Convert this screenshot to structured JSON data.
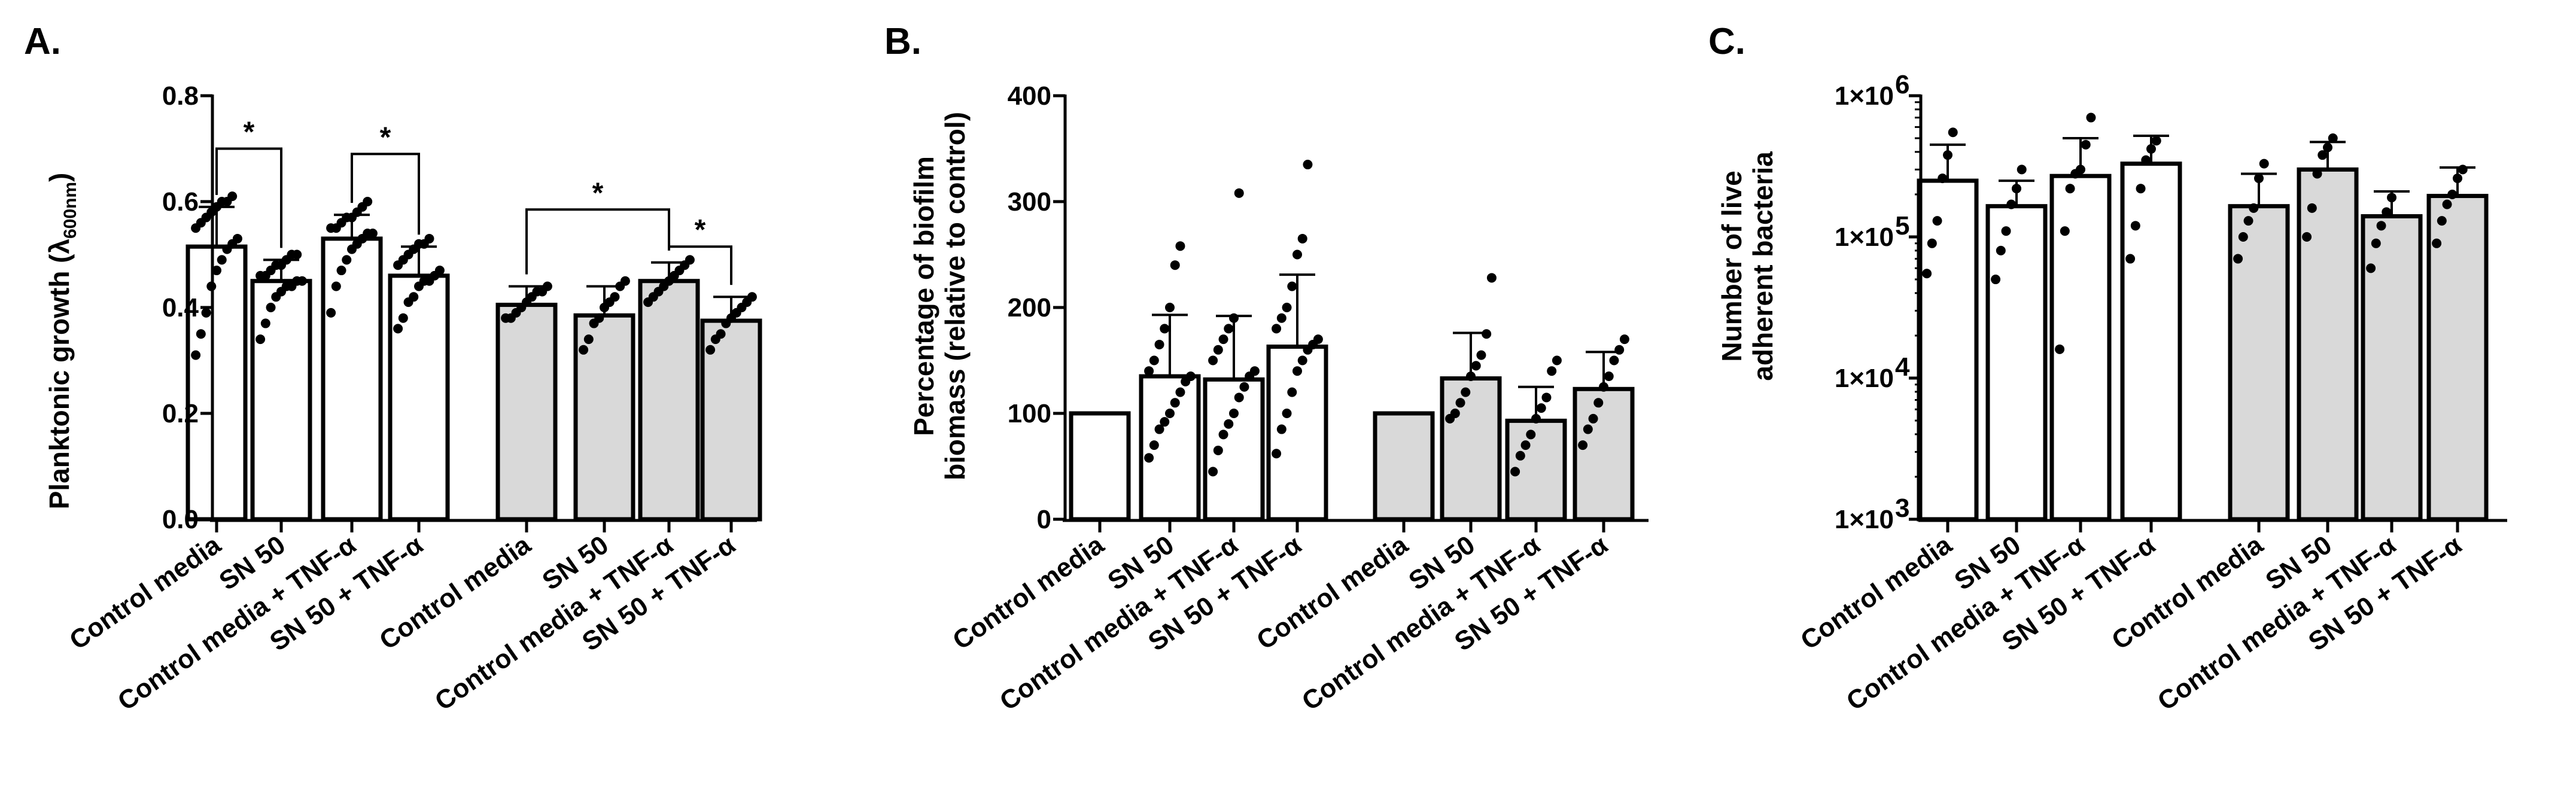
{
  "colors": {
    "white_bar": "#ffffff",
    "grey_bar": "#d9d9d9",
    "ink": "#000000"
  },
  "chart_data": [
    {
      "type": "bar",
      "panel": "A.",
      "ylabel": "Planktonic growth (λ",
      "ylabel_sub": "600nm",
      "ylabel_close": ")",
      "ylim": [
        0,
        0.8
      ],
      "yticks": [
        0,
        0.2,
        0.4,
        0.6,
        0.8
      ],
      "ytick_labels": [
        "0.0",
        "0.2",
        "0.4",
        "0.6",
        "0.8"
      ],
      "categories": [
        "Control media",
        "SN 50",
        "Control media + TNF-α",
        "SN 50 + TNF-α",
        "Control media",
        "SN 50",
        "Control media + TNF-α",
        "SN 50 + TNF-α"
      ],
      "fills": [
        "white",
        "white",
        "white",
        "white",
        "grey",
        "grey",
        "grey",
        "grey"
      ],
      "values": [
        0.515,
        0.45,
        0.53,
        0.46,
        0.405,
        0.385,
        0.45,
        0.375
      ],
      "errors": [
        0.075,
        0.04,
        0.045,
        0.055,
        0.035,
        0.055,
        0.035,
        0.045
      ],
      "points": [
        [
          0.31,
          0.35,
          0.39,
          0.44,
          0.47,
          0.49,
          0.51,
          0.52,
          0.53,
          0.55,
          0.56,
          0.57,
          0.58,
          0.59,
          0.6,
          0.6,
          0.61
        ],
        [
          0.34,
          0.37,
          0.4,
          0.42,
          0.43,
          0.44,
          0.44,
          0.45,
          0.45,
          0.46,
          0.46,
          0.47,
          0.48,
          0.48,
          0.49,
          0.5,
          0.5
        ],
        [
          0.39,
          0.44,
          0.47,
          0.49,
          0.51,
          0.52,
          0.53,
          0.54,
          0.54,
          0.55,
          0.55,
          0.56,
          0.57,
          0.57,
          0.58,
          0.59,
          0.6
        ],
        [
          0.36,
          0.38,
          0.41,
          0.42,
          0.44,
          0.45,
          0.45,
          0.46,
          0.47,
          0.48,
          0.49,
          0.5,
          0.51,
          0.52,
          0.52,
          0.53
        ],
        [
          0.38,
          0.38,
          0.39,
          0.4,
          0.41,
          0.42,
          0.43,
          0.43,
          0.44
        ],
        [
          0.32,
          0.34,
          0.37,
          0.38,
          0.4,
          0.41,
          0.42,
          0.44,
          0.45
        ],
        [
          0.41,
          0.42,
          0.43,
          0.44,
          0.45,
          0.46,
          0.47,
          0.48,
          0.49
        ],
        [
          0.32,
          0.34,
          0.35,
          0.37,
          0.38,
          0.39,
          0.4,
          0.41,
          0.42
        ]
      ],
      "significance": [
        {
          "from": 0,
          "to": 1,
          "y": 0.7,
          "label": "*"
        },
        {
          "from": 2,
          "to": 3,
          "y": 0.69,
          "label": "*"
        },
        {
          "from": 4,
          "to": 6,
          "y": 0.585,
          "label": "*"
        },
        {
          "from": 6,
          "to": 7,
          "y": 0.515,
          "label": "*"
        }
      ]
    },
    {
      "type": "bar",
      "panel": "B.",
      "ylabel": "Percentage of biofilm",
      "ylabel2": "biomass (relative to control)",
      "ylim": [
        0,
        400
      ],
      "yticks": [
        0,
        100,
        200,
        300,
        400
      ],
      "ytick_labels": [
        "0",
        "100",
        "200",
        "300",
        "400"
      ],
      "categories": [
        "Control media",
        "SN 50",
        "Control media + TNF-α",
        "SN 50 + TNF-α",
        "Control media",
        "SN 50",
        "Control media + TNF-α",
        "SN 50 + TNF-α"
      ],
      "fills": [
        "white",
        "white",
        "white",
        "white",
        "grey",
        "grey",
        "grey",
        "grey"
      ],
      "values": [
        100,
        135,
        132,
        163,
        100,
        133,
        93,
        123
      ],
      "errors": [
        0,
        58,
        60,
        68,
        0,
        43,
        32,
        35
      ],
      "points": [
        [],
        [
          58,
          70,
          85,
          92,
          100,
          110,
          120,
          130,
          135,
          140,
          150,
          165,
          180,
          200,
          240,
          258
        ],
        [
          45,
          65,
          80,
          90,
          100,
          115,
          125,
          135,
          140,
          150,
          160,
          170,
          180,
          190,
          308
        ],
        [
          62,
          85,
          100,
          120,
          140,
          150,
          160,
          165,
          170,
          180,
          190,
          200,
          220,
          250,
          265,
          335
        ],
        [],
        [
          95,
          100,
          110,
          120,
          135,
          145,
          155,
          175,
          228
        ],
        [
          45,
          60,
          70,
          80,
          95,
          105,
          115,
          140,
          150
        ],
        [
          70,
          85,
          95,
          110,
          125,
          135,
          150,
          160,
          170
        ]
      ]
    },
    {
      "type": "bar",
      "panel": "C.",
      "scale": "log",
      "ylabel": "Number of live",
      "ylabel2": "adherent bacteria",
      "ylim": [
        1000,
        1000000
      ],
      "ytick_labels": [
        "1×10",
        "1×10",
        "1×10",
        "1×10"
      ],
      "ytick_exponents": [
        "3",
        "4",
        "5",
        "6"
      ],
      "categories": [
        "Control media",
        "SN 50",
        "Control media + TNF-α",
        "SN 50 + TNF-α",
        "Control media",
        "SN 50",
        "Control media + TNF-α",
        "SN 50 + TNF-α"
      ],
      "fills": [
        "white",
        "white",
        "white",
        "white",
        "grey",
        "grey",
        "grey",
        "grey"
      ],
      "values": [
        250000,
        165000,
        270000,
        330000,
        165000,
        300000,
        140000,
        195000
      ],
      "error_high": [
        450000,
        250000,
        500000,
        520000,
        280000,
        470000,
        210000,
        310000
      ],
      "points": [
        [
          55000,
          90000,
          130000,
          260000,
          380000,
          550000
        ],
        [
          50000,
          80000,
          110000,
          170000,
          220000,
          300000
        ],
        [
          16000,
          110000,
          220000,
          280000,
          300000,
          450000,
          700000
        ],
        [
          70000,
          120000,
          220000,
          350000,
          420000,
          480000
        ],
        [
          70000,
          100000,
          130000,
          160000,
          260000,
          330000
        ],
        [
          100000,
          160000,
          280000,
          380000,
          430000,
          500000
        ],
        [
          60000,
          90000,
          120000,
          150000,
          190000
        ],
        [
          90000,
          130000,
          170000,
          200000,
          260000,
          300000
        ]
      ]
    }
  ]
}
